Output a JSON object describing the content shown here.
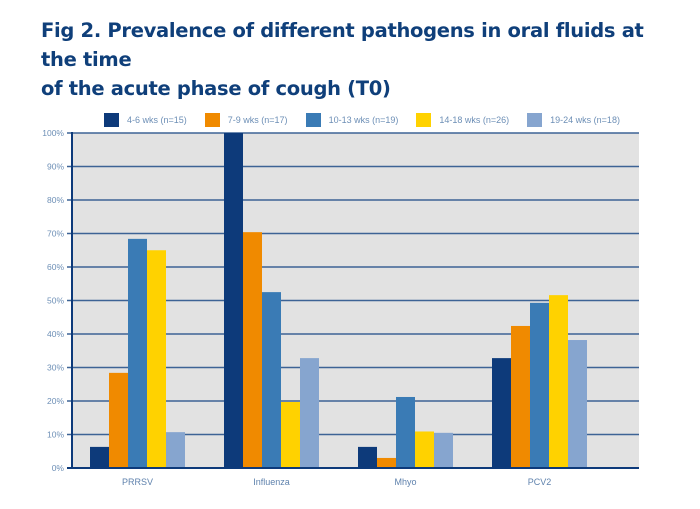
{
  "chart_data": {
    "type": "bar",
    "title_lines": [
      "Fig 2. Prevalence of different pathogens in oral fluids at the time",
      "of the acute phase of cough (T0)"
    ],
    "title": "Fig 2. Prevalence of different pathogens in oral fluids at the time of the acute phase of cough (T0)",
    "xlabel": "",
    "ylabel": "",
    "categories": [
      "PRRSV",
      "Influenza",
      "Mhyo",
      "PCV2"
    ],
    "series": [
      {
        "name": "4-6 wks (n=15)",
        "color": "#0d3a7a",
        "values": [
          6.3,
          100,
          6.3,
          32.8
        ]
      },
      {
        "name": "7-9 wks (n=17)",
        "color": "#f08a00",
        "values": [
          28.4,
          70.4,
          3.0,
          42.4
        ]
      },
      {
        "name": "10-13 wks (n=19)",
        "color": "#3a7bb5",
        "values": [
          68.4,
          52.5,
          21.2,
          49.3
        ]
      },
      {
        "name": "14-18 wks (n=26)",
        "color": "#ffd200",
        "values": [
          65.0,
          19.7,
          10.9,
          51.6
        ]
      },
      {
        "name": "19-24 wks (n=18)",
        "color": "#86a5cf",
        "values": [
          10.7,
          32.8,
          10.5,
          38.2
        ]
      }
    ],
    "ylim": [
      0,
      100
    ],
    "yticks": [
      0,
      10,
      20,
      30,
      40,
      50,
      60,
      70,
      80,
      90,
      100
    ],
    "ytick_labels": [
      "0%",
      "10%",
      "20%",
      "30%",
      "40%",
      "50%",
      "60%",
      "70%",
      "80%",
      "90%",
      "100%"
    ],
    "grid": true,
    "legend_position": "top"
  },
  "colors": {
    "title": "#0f3f7a",
    "plot_background": "#e2e2e2",
    "grid": "#3d6395",
    "axis": "#0d3a7a"
  }
}
